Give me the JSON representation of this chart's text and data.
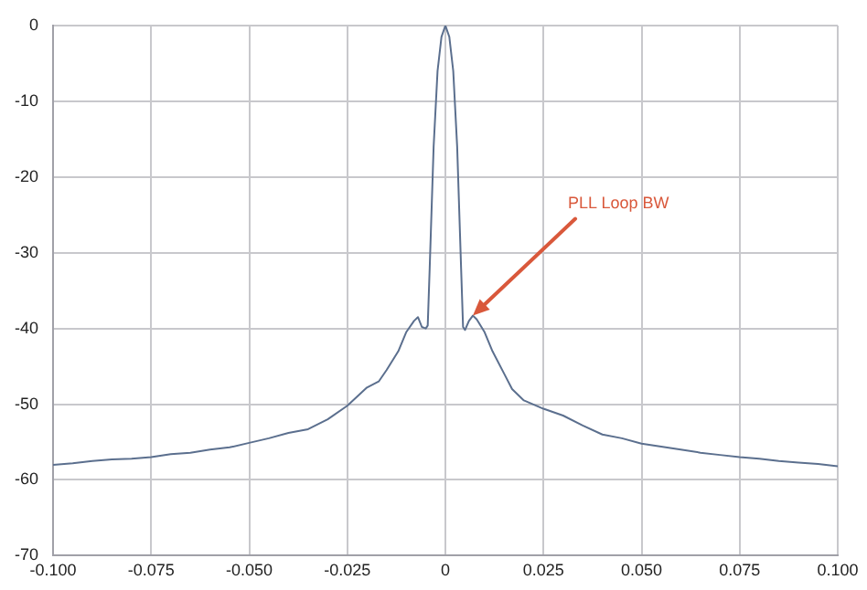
{
  "chart_data": {
    "type": "line",
    "grid": true,
    "legend": false,
    "marker": "none",
    "x": [
      -0.1,
      -0.095,
      -0.09,
      -0.085,
      -0.08,
      -0.075,
      -0.07,
      -0.065,
      -0.06,
      -0.055,
      -0.05,
      -0.045,
      -0.04,
      -0.035,
      -0.03,
      -0.025,
      -0.02,
      -0.017,
      -0.015,
      -0.012,
      -0.01,
      -0.008,
      -0.007,
      -0.006,
      -0.005,
      -0.0045,
      -0.004,
      -0.003,
      -0.002,
      -0.001,
      0,
      0.001,
      0.002,
      0.003,
      0.004,
      0.0045,
      0.005,
      0.006,
      0.007,
      0.008,
      0.01,
      0.012,
      0.015,
      0.017,
      0.02,
      0.025,
      0.03,
      0.035,
      0.04,
      0.045,
      0.05,
      0.055,
      0.06,
      0.065,
      0.07,
      0.075,
      0.08,
      0.085,
      0.09,
      0.095,
      0.1
    ],
    "series": [
      {
        "color": "#5b6f8e",
        "values": [
          -58,
          -57.8,
          -57.5,
          -57.3,
          -57.2,
          -57,
          -56.6,
          -56.4,
          -56,
          -55.7,
          -55.1,
          -54.5,
          -53.8,
          -53.3,
          -52,
          -50.2,
          -47.8,
          -47,
          -45.5,
          -43,
          -40.5,
          -39,
          -38.5,
          -39.8,
          -40,
          -39.6,
          -32,
          -16,
          -6,
          -1.5,
          0,
          -1.5,
          -6,
          -16,
          -32,
          -39.8,
          -40.2,
          -39,
          -38.3,
          -38.8,
          -40.5,
          -43,
          -46,
          -48,
          -49.5,
          -50.6,
          -51.5,
          -52.8,
          -54,
          -54.5,
          -55.2,
          -55.6,
          -56,
          -56.4,
          -56.7,
          -57,
          -57.2,
          -57.5,
          -57.7,
          -57.9,
          -58.2
        ]
      }
    ],
    "xlim": [
      -0.1,
      0.1
    ],
    "ylim": [
      -70,
      0
    ],
    "xticks": [
      {
        "value": -0.1,
        "label": "-0.100"
      },
      {
        "value": -0.075,
        "label": "-0.075"
      },
      {
        "value": -0.05,
        "label": "-0.050"
      },
      {
        "value": -0.025,
        "label": "-0.025"
      },
      0,
      {
        "value": 0.025,
        "label": "0.025"
      },
      {
        "value": 0.05,
        "label": "0.050"
      },
      {
        "value": 0.075,
        "label": "0.075"
      },
      {
        "value": 0.1,
        "label": "0.100"
      }
    ],
    "yticks": [
      -70,
      -60,
      -50,
      -40,
      -30,
      -20,
      -10,
      0
    ],
    "annotations": [
      {
        "text": "PLL Loop BW",
        "x": 0.007,
        "y": -38.3
      }
    ]
  }
}
